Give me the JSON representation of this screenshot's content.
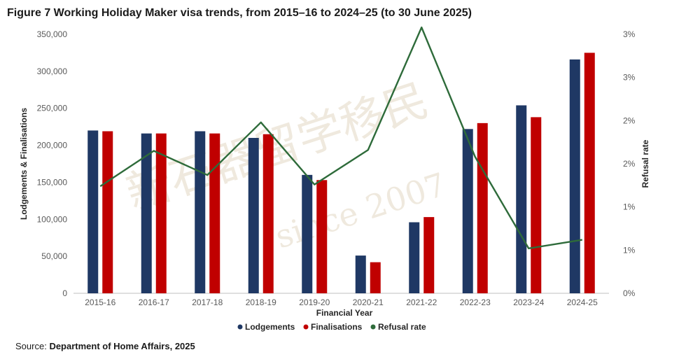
{
  "title": "Figure 7 Working Holiday Maker visa trends, from 2015–16 to 2024–25 (to 30 June 2025)",
  "source_label": "Source:",
  "source_name": "Department of Home Affairs, 2025",
  "watermark": {
    "chinese": "新石器留学移民",
    "english": "since 2007"
  },
  "colors": {
    "lodgements": "#1f3864",
    "finalisations": "#c00000",
    "refusal": "#2e6b3a"
  },
  "chart_data": {
    "type": "bar",
    "categories": [
      "2015-16",
      "2016-17",
      "2017-18",
      "2018-19",
      "2019-20",
      "2020-21",
      "2021-22",
      "2022-23",
      "2023-24",
      "2024-25"
    ],
    "series": [
      {
        "name": "Lodgements",
        "type": "bar",
        "axis": "left",
        "values": [
          220000,
          216000,
          219000,
          210000,
          160000,
          51000,
          96000,
          222000,
          254000,
          316000
        ]
      },
      {
        "name": "Finalisations",
        "type": "bar",
        "axis": "left",
        "values": [
          219000,
          216000,
          216000,
          215000,
          153000,
          42000,
          103000,
          230000,
          238000,
          325000
        ]
      },
      {
        "name": "Refusal rate",
        "type": "line",
        "axis": "right",
        "values": [
          1.24,
          1.65,
          1.37,
          1.98,
          1.26,
          1.66,
          3.08,
          1.58,
          0.52,
          0.62
        ]
      }
    ],
    "xlabel": "Financial Year",
    "ylabel": "Lodgements & Finalisations",
    "y2label": "Refusal rate",
    "ylim": [
      0,
      350000
    ],
    "yticks": [
      "0",
      "50,000",
      "100,000",
      "150,000",
      "200,000",
      "250,000",
      "300,000",
      "350,000"
    ],
    "y2lim": [
      0,
      3
    ],
    "y2ticks": [
      "0%",
      "1%",
      "1%",
      "2%",
      "2%",
      "3%",
      "3%"
    ],
    "legend": "bottom",
    "grid": false
  }
}
